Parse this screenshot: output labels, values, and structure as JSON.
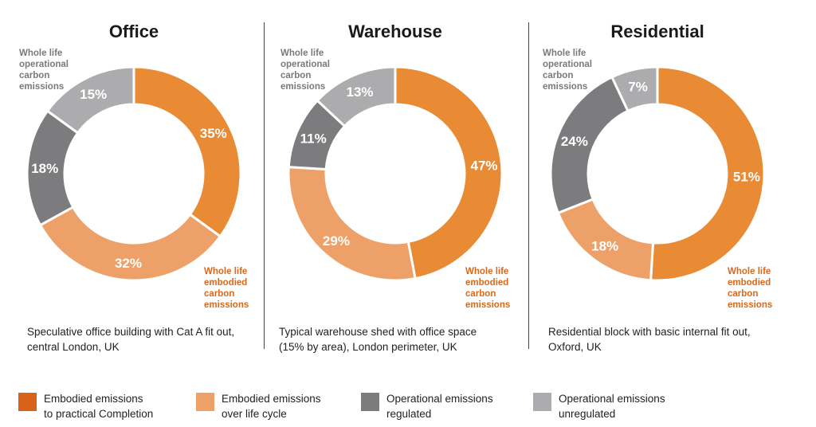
{
  "chart_data": [
    {
      "type": "pie",
      "title": "Office",
      "categories": [
        "Embodied emissions to practical Completion",
        "Embodied emissions over life cycle",
        "Operational emissions regulated",
        "Operational emissions unregulated"
      ],
      "values": [
        35,
        32,
        18,
        15
      ],
      "labels": [
        "35%",
        "32%",
        "18%",
        "15%"
      ],
      "operational_label": [
        "Whole life",
        "operational",
        "carbon",
        "emissions"
      ],
      "embodied_label": [
        "Whole life",
        "embodied",
        "carbon",
        "emissions"
      ],
      "caption": [
        "Speculative office building with Cat A fit out,",
        "central London, UK"
      ]
    },
    {
      "type": "pie",
      "title": "Warehouse",
      "categories": [
        "Embodied emissions to practical Completion",
        "Embodied emissions over life cycle",
        "Operational emissions regulated",
        "Operational emissions unregulated"
      ],
      "values": [
        47,
        29,
        11,
        13
      ],
      "labels": [
        "47%",
        "29%",
        "11%",
        "13%"
      ],
      "operational_label": [
        "Whole life",
        "operational",
        "carbon",
        "emissions"
      ],
      "embodied_label": [
        "Whole life",
        "embodied",
        "carbon",
        "emissions"
      ],
      "caption": [
        "Typical warehouse shed with office space",
        "(15% by area), London perimeter, UK"
      ]
    },
    {
      "type": "pie",
      "title": "Residential",
      "categories": [
        "Embodied emissions to practical Completion",
        "Embodied emissions over life cycle",
        "Operational emissions regulated",
        "Operational emissions unregulated"
      ],
      "values": [
        51,
        18,
        24,
        7
      ],
      "labels": [
        "51%",
        "18%",
        "24%",
        "7%"
      ],
      "operational_label": [
        "Whole life",
        "operational",
        "carbon",
        "emissions"
      ],
      "embodied_label": [
        "Whole life",
        "embodied",
        "carbon",
        "emissions"
      ],
      "caption": [
        "Residential block with basic internal fit out,",
        "Oxford, UK"
      ]
    }
  ],
  "colors": [
    "#e98a35",
    "#eda168",
    "#7c7c7e",
    "#acacae"
  ],
  "legend_colors": [
    "#d8621a",
    "#eda168",
    "#7c7c7e",
    "#acacae"
  ],
  "legend": [
    {
      "line1": "Embodied emissions",
      "line2": "to practical Completion"
    },
    {
      "line1": "Embodied emissions",
      "line2": "over life cycle"
    },
    {
      "line1": "Operational emissions",
      "line2": "regulated"
    },
    {
      "line1": "Operational emissions",
      "line2": "unregulated"
    }
  ]
}
